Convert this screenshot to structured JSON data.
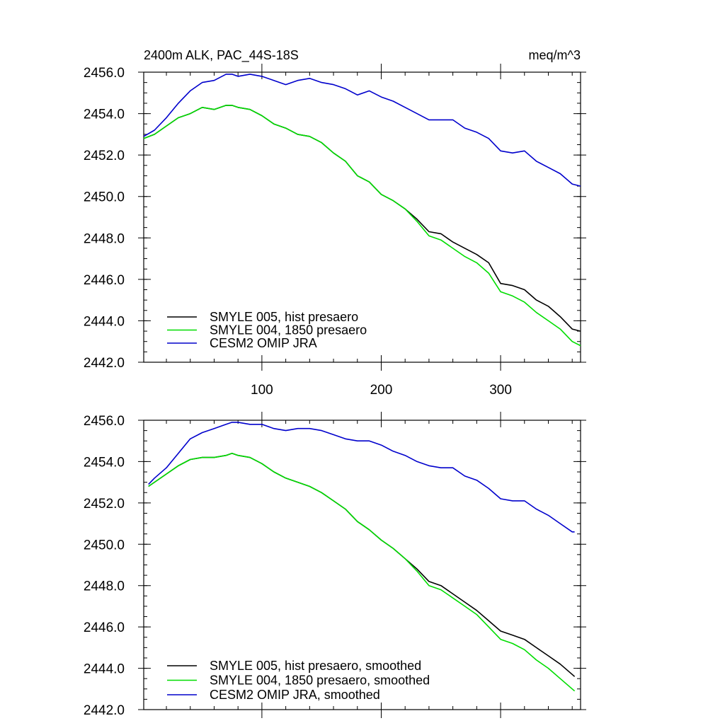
{
  "chart_data": [
    {
      "type": "line",
      "title": "2400m ALK, PAC_44S-18S",
      "units": "meq/m^3",
      "xlabel": "",
      "ylabel": "",
      "xlim": [
        1,
        367
      ],
      "ylim": [
        2442.0,
        2456.0
      ],
      "xticks": [
        100,
        200,
        300
      ],
      "xtick_labels": [
        "100",
        "200",
        "300"
      ],
      "yticks": [
        2442.0,
        2444.0,
        2446.0,
        2448.0,
        2450.0,
        2452.0,
        2454.0,
        2456.0
      ],
      "ytick_labels": [
        "2442.0",
        "2444.0",
        "2446.0",
        "2448.0",
        "2450.0",
        "2452.0",
        "2454.0",
        "2456.0"
      ],
      "grid": false,
      "legend_position": "bottom-left",
      "series": [
        {
          "name": "SMYLE 005, hist presaero",
          "color": "#000000",
          "x": [
            1,
            10,
            20,
            30,
            40,
            50,
            60,
            70,
            75,
            80,
            90,
            100,
            110,
            120,
            130,
            140,
            150,
            160,
            170,
            180,
            190,
            200,
            210,
            220,
            230,
            240,
            250,
            260,
            270,
            280,
            290,
            300,
            310,
            320,
            330,
            340,
            350,
            360,
            367
          ],
          "y": [
            2452.8,
            2453.0,
            2453.4,
            2453.8,
            2454.0,
            2454.3,
            2454.2,
            2454.4,
            2454.4,
            2454.3,
            2454.2,
            2453.9,
            2453.5,
            2453.3,
            2453.0,
            2452.9,
            2452.6,
            2452.1,
            2451.7,
            2451.0,
            2450.7,
            2450.1,
            2449.8,
            2449.4,
            2448.9,
            2448.3,
            2448.2,
            2447.8,
            2447.5,
            2447.2,
            2446.8,
            2445.8,
            2445.7,
            2445.5,
            2445.0,
            2444.7,
            2444.2,
            2443.6,
            2443.5
          ]
        },
        {
          "name": "SMYLE 004, 1850 presaero",
          "color": "#00dd00",
          "x": [
            1,
            10,
            20,
            30,
            40,
            50,
            60,
            70,
            75,
            80,
            90,
            100,
            110,
            120,
            130,
            140,
            150,
            160,
            170,
            180,
            190,
            200,
            210,
            220,
            230,
            240,
            250,
            260,
            270,
            280,
            290,
            300,
            310,
            320,
            330,
            340,
            350,
            360,
            367
          ],
          "y": [
            2452.8,
            2453.0,
            2453.4,
            2453.8,
            2454.0,
            2454.3,
            2454.2,
            2454.4,
            2454.4,
            2454.3,
            2454.2,
            2453.9,
            2453.5,
            2453.3,
            2453.0,
            2452.9,
            2452.6,
            2452.1,
            2451.7,
            2451.0,
            2450.7,
            2450.1,
            2449.8,
            2449.4,
            2448.8,
            2448.1,
            2447.9,
            2447.5,
            2447.1,
            2446.8,
            2446.3,
            2445.4,
            2445.2,
            2444.9,
            2444.4,
            2444.0,
            2443.6,
            2443.0,
            2442.8
          ]
        },
        {
          "name": "CESM2 OMIP JRA",
          "color": "#0000cc",
          "x": [
            1,
            10,
            20,
            30,
            40,
            50,
            60,
            70,
            75,
            80,
            90,
            100,
            110,
            120,
            130,
            140,
            150,
            160,
            170,
            180,
            190,
            200,
            210,
            220,
            230,
            240,
            250,
            260,
            270,
            280,
            290,
            300,
            310,
            320,
            330,
            340,
            350,
            360,
            367
          ],
          "y": [
            2452.9,
            2453.2,
            2453.8,
            2454.5,
            2455.1,
            2455.5,
            2455.6,
            2455.9,
            2455.9,
            2455.8,
            2455.9,
            2455.8,
            2455.6,
            2455.4,
            2455.6,
            2455.7,
            2455.5,
            2455.4,
            2455.2,
            2454.9,
            2455.1,
            2454.8,
            2454.6,
            2454.3,
            2454.0,
            2453.7,
            2453.7,
            2453.7,
            2453.3,
            2453.1,
            2452.8,
            2452.2,
            2452.1,
            2452.2,
            2451.7,
            2451.4,
            2451.1,
            2450.6,
            2450.5
          ]
        }
      ]
    },
    {
      "type": "line",
      "title": "",
      "xlabel": "",
      "ylabel": "",
      "xlim": [
        1,
        367
      ],
      "ylim": [
        2442.0,
        2456.0
      ],
      "xticks": [
        100,
        200,
        300
      ],
      "xtick_labels": [],
      "yticks": [
        2442.0,
        2444.0,
        2446.0,
        2448.0,
        2450.0,
        2452.0,
        2454.0,
        2456.0
      ],
      "ytick_labels": [
        "2442.0",
        "2444.0",
        "2446.0",
        "2448.0",
        "2450.0",
        "2452.0",
        "2454.0",
        "2456.0"
      ],
      "grid": false,
      "legend_position": "bottom-left",
      "series": [
        {
          "name": "SMYLE 005, hist presaero, smoothed",
          "color": "#000000",
          "x": [
            5,
            10,
            20,
            30,
            40,
            50,
            60,
            70,
            75,
            80,
            90,
            100,
            110,
            120,
            130,
            140,
            150,
            160,
            170,
            180,
            190,
            200,
            210,
            220,
            230,
            240,
            250,
            260,
            270,
            280,
            290,
            300,
            310,
            320,
            330,
            340,
            350,
            360,
            362
          ],
          "y": [
            2452.8,
            2453.0,
            2453.4,
            2453.8,
            2454.1,
            2454.2,
            2454.2,
            2454.3,
            2454.4,
            2454.3,
            2454.2,
            2453.9,
            2453.5,
            2453.2,
            2453.0,
            2452.8,
            2452.5,
            2452.1,
            2451.7,
            2451.1,
            2450.7,
            2450.2,
            2449.8,
            2449.3,
            2448.8,
            2448.2,
            2448.0,
            2447.6,
            2447.2,
            2446.8,
            2446.3,
            2445.8,
            2445.6,
            2445.4,
            2445.0,
            2444.6,
            2444.2,
            2443.7,
            2443.6
          ]
        },
        {
          "name": "SMYLE 004, 1850 presaero, smoothed",
          "color": "#00dd00",
          "x": [
            5,
            10,
            20,
            30,
            40,
            50,
            60,
            70,
            75,
            80,
            90,
            100,
            110,
            120,
            130,
            140,
            150,
            160,
            170,
            180,
            190,
            200,
            210,
            220,
            230,
            240,
            250,
            260,
            270,
            280,
            290,
            300,
            310,
            320,
            330,
            340,
            350,
            360,
            362
          ],
          "y": [
            2452.8,
            2453.0,
            2453.4,
            2453.8,
            2454.1,
            2454.2,
            2454.2,
            2454.3,
            2454.4,
            2454.3,
            2454.2,
            2453.9,
            2453.5,
            2453.2,
            2453.0,
            2452.8,
            2452.5,
            2452.1,
            2451.7,
            2451.1,
            2450.7,
            2450.2,
            2449.8,
            2449.3,
            2448.7,
            2448.0,
            2447.8,
            2447.4,
            2447.0,
            2446.6,
            2446.0,
            2445.4,
            2445.2,
            2444.9,
            2444.4,
            2444.0,
            2443.5,
            2443.0,
            2442.9
          ]
        },
        {
          "name": "CESM2 OMIP JRA, smoothed",
          "color": "#0000cc",
          "x": [
            5,
            10,
            20,
            30,
            40,
            50,
            60,
            70,
            75,
            80,
            90,
            100,
            110,
            120,
            130,
            140,
            150,
            160,
            170,
            180,
            190,
            200,
            210,
            220,
            230,
            240,
            250,
            260,
            270,
            280,
            290,
            300,
            310,
            320,
            330,
            340,
            350,
            360,
            362
          ],
          "y": [
            2452.9,
            2453.2,
            2453.7,
            2454.4,
            2455.1,
            2455.4,
            2455.6,
            2455.8,
            2455.9,
            2455.9,
            2455.8,
            2455.8,
            2455.6,
            2455.5,
            2455.6,
            2455.6,
            2455.5,
            2455.3,
            2455.1,
            2455.0,
            2455.0,
            2454.8,
            2454.5,
            2454.3,
            2454.0,
            2453.8,
            2453.7,
            2453.7,
            2453.3,
            2453.1,
            2452.7,
            2452.2,
            2452.1,
            2452.1,
            2451.7,
            2451.4,
            2451.0,
            2450.6,
            2450.6
          ]
        }
      ]
    }
  ]
}
